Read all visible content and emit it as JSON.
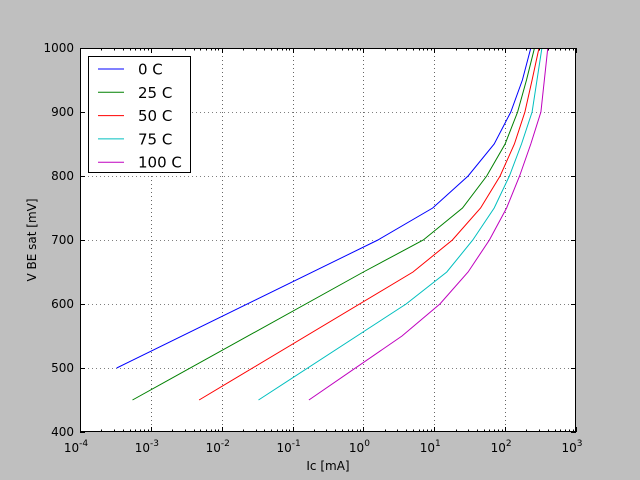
{
  "chart_data": {
    "type": "line",
    "xlabel": "Ic [mA]",
    "ylabel": "V BE sat [mV]",
    "x_scale": "log",
    "xlim": [
      0.0001,
      1000
    ],
    "ylim": [
      400,
      1000
    ],
    "grid": true,
    "legend_position": "top-left",
    "x_ticks": [
      {
        "value": 0.0001,
        "base": "10",
        "exp": "-4"
      },
      {
        "value": 0.001,
        "base": "10",
        "exp": "-3"
      },
      {
        "value": 0.01,
        "base": "10",
        "exp": "-2"
      },
      {
        "value": 0.1,
        "base": "10",
        "exp": "-1"
      },
      {
        "value": 1,
        "base": "10",
        "exp": "0"
      },
      {
        "value": 10,
        "base": "10",
        "exp": "1"
      },
      {
        "value": 100,
        "base": "10",
        "exp": "2"
      },
      {
        "value": 1000,
        "base": "10",
        "exp": "3"
      }
    ],
    "y_ticks": [
      "400",
      "500",
      "600",
      "700",
      "800",
      "900",
      "1000"
    ],
    "series": [
      {
        "name": "0 C",
        "color": "#0000ff",
        "x": [
          0.00033,
          1.6,
          9.5,
          30,
          70,
          120,
          175,
          230
        ],
        "y": [
          500,
          700,
          750,
          800,
          850,
          900,
          950,
          1000
        ]
      },
      {
        "name": "25 C",
        "color": "#008000",
        "x": [
          0.00055,
          1.0,
          7.0,
          25,
          55,
          100,
          150,
          200,
          260
        ],
        "y": [
          450,
          650,
          700,
          750,
          800,
          850,
          900,
          950,
          1000
        ]
      },
      {
        "name": "50 C",
        "color": "#ff0000",
        "x": [
          0.0048,
          5.0,
          18,
          45,
          85,
          135,
          190,
          240,
          300
        ],
        "y": [
          450,
          650,
          700,
          750,
          800,
          850,
          900,
          950,
          1000
        ]
      },
      {
        "name": "75 C",
        "color": "#00bfbf",
        "x": [
          0.033,
          4.0,
          15,
          35,
          70,
          115,
          170,
          240,
          330
        ],
        "y": [
          450,
          600,
          650,
          700,
          750,
          800,
          850,
          900,
          1000
        ]
      },
      {
        "name": "100 C",
        "color": "#bf00bf",
        "x": [
          0.17,
          3.5,
          12,
          30,
          60,
          105,
          160,
          230,
          320,
          400
        ],
        "y": [
          450,
          550,
          600,
          650,
          700,
          750,
          800,
          850,
          900,
          1000
        ]
      }
    ]
  }
}
